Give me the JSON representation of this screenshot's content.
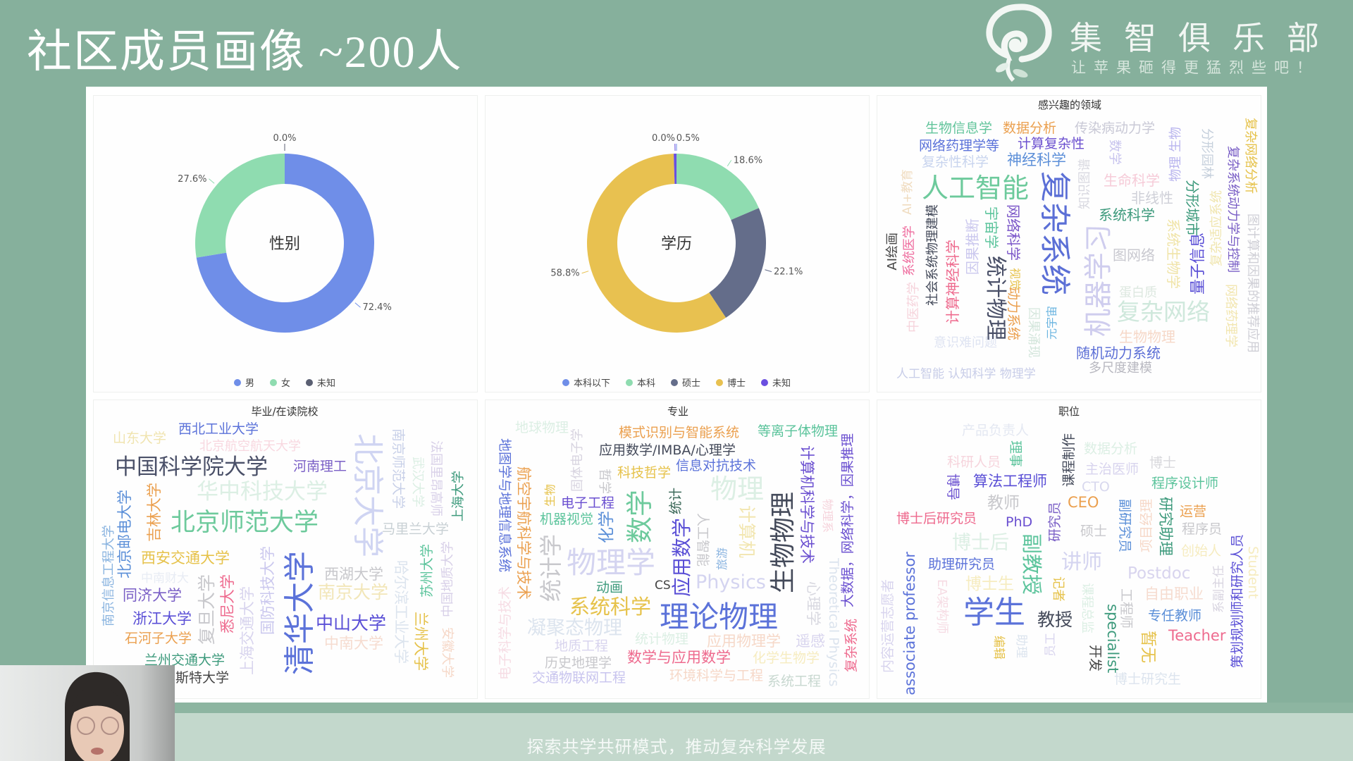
{
  "header": {
    "title": "社区成员画像 ~200人"
  },
  "logo": {
    "name": "集智俱乐部",
    "slogan": "让苹果砸得更猛烈些吧！"
  },
  "footer": {
    "text": "探索共学共研模式，推动复杂科学发展"
  },
  "colors": {
    "background": "#86b09c",
    "band": "#c3d8cc"
  },
  "chart_data": [
    {
      "type": "pie",
      "donut": true,
      "center_label": "性别",
      "categories": [
        "男",
        "女",
        "未知"
      ],
      "values": [
        72.4,
        27.6,
        0.0
      ],
      "labels": [
        "72.4%",
        "27.6%",
        "0.0%"
      ],
      "colors": [
        "#6f8ee8",
        "#8fdcb0",
        "#5a5f72"
      ],
      "legend": "bottom"
    },
    {
      "type": "pie",
      "donut": true,
      "center_label": "学历",
      "categories": [
        "本科以下",
        "本科",
        "硕士",
        "博士",
        "未知"
      ],
      "values": [
        0.0,
        18.6,
        22.1,
        58.8,
        0.5
      ],
      "labels": [
        "0.0%",
        "18.6%",
        "22.1%",
        "58.8%",
        "0.5%"
      ],
      "colors": [
        "#6f8ee8",
        "#8fdcb0",
        "#646d8a",
        "#e8c150",
        "#6a4fe0"
      ],
      "legend": "bottom"
    }
  ],
  "clouds": {
    "interests": {
      "title": "感兴趣的领域",
      "words": [
        {
          "t": "生物信息学",
          "c": "#62c49b"
        },
        {
          "t": "数据分析",
          "c": "#eba04f"
        },
        {
          "t": "传染病动力学",
          "c": "#c9c9d6"
        },
        {
          "t": "网络药理学等",
          "c": "#5b72d9"
        },
        {
          "t": "计算复杂性",
          "c": "#6b4fcf"
        },
        {
          "t": "复杂性科学",
          "c": "#c8d4ee"
        },
        {
          "t": "神经科学",
          "c": "#5c8fd8"
        },
        {
          "t": "人工智能",
          "c": "#6dca9c"
        },
        {
          "t": "生命科学",
          "c": "#f6cbd8"
        },
        {
          "t": "非线性",
          "c": "#cfd0d8"
        },
        {
          "t": "系统科学",
          "c": "#3d9a7c"
        },
        {
          "t": "图网络",
          "c": "#c9c9d0"
        },
        {
          "t": "蛋白质",
          "c": "#dde8e0"
        },
        {
          "t": "复杂网络",
          "c": "#cfe8dc"
        },
        {
          "t": "生物物理",
          "c": "#f6d8c8"
        },
        {
          "t": "随机动力系统",
          "c": "#5c6fd6"
        },
        {
          "t": "多尺度建模",
          "c": "#b8b8c0"
        },
        {
          "t": "意识难问题",
          "c": "#dfe4f2"
        },
        {
          "t": "人工智能 认知科学 物理学",
          "c": "#c8cde8"
        },
        {
          "t": "复杂系统",
          "c": "#5b6fd6"
        },
        {
          "t": "知识图谱",
          "c": "#d8d8e0"
        },
        {
          "t": "数学",
          "c": "#c8c4ee"
        },
        {
          "t": "物理 生物",
          "c": "#b8b4ee"
        },
        {
          "t": "分形园林",
          "c": "#c6d0dc"
        },
        {
          "t": "复杂网络分析",
          "c": "#e6c24a"
        },
        {
          "t": "复杂系统动力学与控制",
          "c": "#7a5fc6"
        },
        {
          "t": "分形城市",
          "c": "#3d9a7c"
        },
        {
          "t": "复杂适应系统",
          "c": "#f0e6b0"
        },
        {
          "t": "系统生物学",
          "c": "#f0e4a8"
        },
        {
          "t": "量子信息",
          "c": "#5a4fd6"
        },
        {
          "t": "图计算和因果的推荐应用",
          "c": "#cfcfd6"
        },
        {
          "t": "网络药理学",
          "c": "#f2e6b0"
        },
        {
          "t": "机器学习",
          "c": "#cfcdee"
        },
        {
          "t": "AI+教育",
          "c": "#f0dcc0"
        },
        {
          "t": "AI绘画",
          "c": "#444444"
        },
        {
          "t": "系统医学",
          "c": "#ef6fa0"
        },
        {
          "t": "中医药学",
          "c": "#f6d4dc"
        },
        {
          "t": "社会系统物理建模",
          "c": "#444a5a"
        },
        {
          "t": "计算神经科学",
          "c": "#ee6a8e"
        },
        {
          "t": "因果推断",
          "c": "#cbc8ee"
        },
        {
          "t": "宇宙学",
          "c": "#5cc49c"
        },
        {
          "t": "网络科学",
          "c": "#7a55c8"
        },
        {
          "t": "统计物理",
          "c": "#4a5068"
        },
        {
          "t": "视觉",
          "c": "#e6c24a"
        },
        {
          "t": "动力系统",
          "c": "#eba04f"
        },
        {
          "t": "因果涌现",
          "c": "#d4e6dc"
        },
        {
          "t": "元宇宙",
          "c": "#6ab4e0"
        }
      ]
    },
    "schools": {
      "title": "毕业/在读院校",
      "words": [
        {
          "t": "西北工业大学",
          "c": "#5b72d9"
        },
        {
          "t": "山东大学",
          "c": "#f0e4b0"
        },
        {
          "t": "北京航空航天大学",
          "c": "#f8d8e0"
        },
        {
          "t": "中国科学院大学",
          "c": "#4a5068"
        },
        {
          "t": "河南理工",
          "c": "#7a5fc6"
        },
        {
          "t": "华中科技大学",
          "c": "#dcefe4"
        },
        {
          "t": "北京师范大学",
          "c": "#6dca9c"
        },
        {
          "t": "北京大学",
          "c": "#cfd4f2"
        },
        {
          "t": "南京师范大学",
          "c": "#c8d0e8"
        },
        {
          "t": "武汉大学",
          "c": "#dcefe4"
        },
        {
          "t": "法国里昂高师",
          "c": "#d8d0e8"
        },
        {
          "t": "上海大学",
          "c": "#3d9a7c"
        },
        {
          "t": "马里兰大学",
          "c": "#c8d0d4"
        },
        {
          "t": "吉林大学",
          "c": "#eba04f"
        },
        {
          "t": "北京邮电大学",
          "c": "#5b8fd8"
        },
        {
          "t": "南京信息工程大学",
          "c": "#8ab4e0"
        },
        {
          "t": "西安交通大学",
          "c": "#e6c24a"
        },
        {
          "t": "中南财大",
          "c": "#e8ecf4"
        },
        {
          "t": "同济大学",
          "c": "#7a5fc6"
        },
        {
          "t": "浙江大学",
          "c": "#5a4fd6"
        },
        {
          "t": "石河子大学",
          "c": "#eba04f"
        },
        {
          "t": "兰州交通大学",
          "c": "#3d9a7c"
        },
        {
          "t": "斯特大学",
          "c": "#444444"
        },
        {
          "t": "复旦大学",
          "c": "#c8c8cc"
        },
        {
          "t": "悉尼大学",
          "c": "#ee6a8e"
        },
        {
          "t": "上海交通大学",
          "c": "#d8d4ee"
        },
        {
          "t": "国防科技大学",
          "c": "#cbc8ee"
        },
        {
          "t": "清华大学",
          "c": "#5b72d9"
        },
        {
          "t": "西湖大学",
          "c": "#c8c8cc"
        },
        {
          "t": "南京大学",
          "c": "#f2e6b8"
        },
        {
          "t": "中山大学",
          "c": "#5a4fd6"
        },
        {
          "t": "中南大学",
          "c": "#f6dcd0"
        },
        {
          "t": "哈尔滨工业大学",
          "c": "#dce4ee"
        },
        {
          "t": "苏州大学",
          "c": "#5cc49c"
        },
        {
          "t": "中国地质大学",
          "c": "#d8d0e8"
        },
        {
          "t": "兰州大学",
          "c": "#e6c24a"
        },
        {
          "t": "安徽大学",
          "c": "#f6d8c8"
        }
      ]
    },
    "majors": {
      "title": "专业",
      "words": [
        {
          "t": "地球物理",
          "c": "#dcefe4"
        },
        {
          "t": "固体电子学",
          "c": "#d8d4e0"
        },
        {
          "t": "模式识别与智能系统",
          "c": "#eba04f"
        },
        {
          "t": "等离子体物理",
          "c": "#5cc49c"
        },
        {
          "t": "应用数学/IMBA/心理学",
          "c": "#444a5a"
        },
        {
          "t": "信息对抗技术",
          "c": "#5b72d9"
        },
        {
          "t": "科技哲学",
          "c": "#e6c24a"
        },
        {
          "t": "地图学与地理信息系统",
          "c": "#5b72d9"
        },
        {
          "t": "航空宇航科学与技术",
          "c": "#eba04f"
        },
        {
          "t": "哲学",
          "c": "#c8c8cc"
        },
        {
          "t": "生物",
          "c": "#e6c24a"
        },
        {
          "t": "电子工程",
          "c": "#6a4fd0"
        },
        {
          "t": "机器视觉",
          "c": "#5cc49c"
        },
        {
          "t": "化学",
          "c": "#5b8fd8"
        },
        {
          "t": "数学",
          "c": "#6dca9c"
        },
        {
          "t": "统计",
          "c": "#3d6a5a"
        },
        {
          "t": "物理",
          "c": "#dcefe4"
        },
        {
          "t": "人工智能",
          "c": "#c8c8cc"
        },
        {
          "t": "应用数学",
          "c": "#5a4fd6"
        },
        {
          "t": "旅游",
          "c": "#8ab4e0"
        },
        {
          "t": "计算机",
          "c": "#f2e6b0"
        },
        {
          "t": "生物物理",
          "c": "#444a5a"
        },
        {
          "t": "计算机科学与技术",
          "c": "#6a4fd0"
        },
        {
          "t": "大数据，网络科学，因果推理",
          "c": "#6a4fd0"
        },
        {
          "t": "物理系",
          "c": "#f6d4dc"
        },
        {
          "t": "统计学",
          "c": "#c8c8cc"
        },
        {
          "t": "物理学",
          "c": "#d4d4f0"
        },
        {
          "t": "动画",
          "c": "#3d9a7c"
        },
        {
          "t": "CS",
          "c": "#444444"
        },
        {
          "t": "Physics",
          "c": "#d4d4f0"
        },
        {
          "t": "心理学",
          "c": "#d8d8e0"
        },
        {
          "t": "Theoretical Physics",
          "c": "#dce4ee"
        },
        {
          "t": "复杂系统",
          "c": "#ee6a8e"
        },
        {
          "t": "系统科学",
          "c": "#e6c24a"
        },
        {
          "t": "理论物理",
          "c": "#5b72d9"
        },
        {
          "t": "凝聚态物理",
          "c": "#dce4ee"
        },
        {
          "t": "电子科学与技术",
          "c": "#f6dce4"
        },
        {
          "t": "统计物理",
          "c": "#dcefe4"
        },
        {
          "t": "应用物理学",
          "c": "#f6d8c8"
        },
        {
          "t": "遥感",
          "c": "#d8d4ee"
        },
        {
          "t": "地质工程",
          "c": "#d8d4ee"
        },
        {
          "t": "数学与应用数学",
          "c": "#ee6a8e"
        },
        {
          "t": "历史地理学",
          "c": "#c8c8cc"
        },
        {
          "t": "化学生物学",
          "c": "#f6ecc0"
        },
        {
          "t": "环境科学与工程",
          "c": "#f6d8c8"
        },
        {
          "t": "交通物联网工程",
          "c": "#c8c4ee"
        },
        {
          "t": "系统工程",
          "c": "#c8d8d0"
        }
      ]
    },
    "positions": {
      "title": "职位",
      "words": [
        {
          "t": "产品负责人",
          "c": "#e4e8f2"
        },
        {
          "t": "理事",
          "c": "#5cc49c"
        },
        {
          "t": "课程制作",
          "c": "#444a5a"
        },
        {
          "t": "数据分析",
          "c": "#dcefe4"
        },
        {
          "t": "科研人员",
          "c": "#f6d4dc"
        },
        {
          "t": "博士",
          "c": "#d8d8dc"
        },
        {
          "t": "主治医师",
          "c": "#d8d4ee"
        },
        {
          "t": "博导",
          "c": "#6a4fd0"
        },
        {
          "t": "算法工程师",
          "c": "#5a4fd6"
        },
        {
          "t": "CTO",
          "c": "#d8d8ee"
        },
        {
          "t": "程序设计师",
          "c": "#5cc49c"
        },
        {
          "t": "教师",
          "c": "#c8c8cc"
        },
        {
          "t": "CEO",
          "c": "#eba04f"
        },
        {
          "t": "博士后研究员",
          "c": "#ee6a8e"
        },
        {
          "t": "PhD",
          "c": "#6a4fd0"
        },
        {
          "t": "研究员",
          "c": "#7a5fc6"
        },
        {
          "t": "硕士",
          "c": "#c8c8cc"
        },
        {
          "t": "副研究员",
          "c": "#5b8fd8"
        },
        {
          "t": "项目经理",
          "c": "#f6d8c8"
        },
        {
          "t": "研究助理",
          "c": "#3d9a7c"
        },
        {
          "t": "运营",
          "c": "#eba04f"
        },
        {
          "t": "程序员",
          "c": "#c8c8cc"
        },
        {
          "t": "博士后",
          "c": "#dcefe4"
        },
        {
          "t": "副教授",
          "c": "#5cc49c"
        },
        {
          "t": "讲师",
          "c": "#d4d4f0"
        },
        {
          "t": "创始人",
          "c": "#f6ecc0"
        },
        {
          "t": "助理研究员",
          "c": "#5b72d9"
        },
        {
          "t": "associate professor",
          "c": "#5b72d9"
        },
        {
          "t": "Postdoc",
          "c": "#d8d4ee"
        },
        {
          "t": "Student",
          "c": "#f6ecc0"
        },
        {
          "t": "策划规划师和研究人员",
          "c": "#5a4fd6"
        },
        {
          "t": "系副主任",
          "c": "#d8d4e0"
        },
        {
          "t": "内容运营志愿者",
          "c": "#d8d4ee"
        },
        {
          "t": "EA架构师",
          "c": "#f6dce4"
        },
        {
          "t": "博士生",
          "c": "#f6ecc0"
        },
        {
          "t": "记者",
          "c": "#e6c24a"
        },
        {
          "t": "工程师",
          "c": "#c8c8cc"
        },
        {
          "t": "自由职业",
          "c": "#f6dcd0"
        },
        {
          "t": "学生",
          "c": "#5b72d9"
        },
        {
          "t": "教授",
          "c": "#444a5a"
        },
        {
          "t": "课程总监",
          "c": "#dcefe4"
        },
        {
          "t": "specialist",
          "c": "#3d9a7c"
        },
        {
          "t": "专任教师",
          "c": "#5b8fd8"
        },
        {
          "t": "暂无",
          "c": "#e6c24a"
        },
        {
          "t": "Teacher",
          "c": "#ee6a8e"
        },
        {
          "t": "编辑",
          "c": "#e6c24a"
        },
        {
          "t": "助理",
          "c": "#dce4ee"
        },
        {
          "t": "员工",
          "c": "#d8d4ee"
        },
        {
          "t": "开发",
          "c": "#444444"
        },
        {
          "t": "博士研究生",
          "c": "#dce4ee"
        }
      ]
    }
  }
}
